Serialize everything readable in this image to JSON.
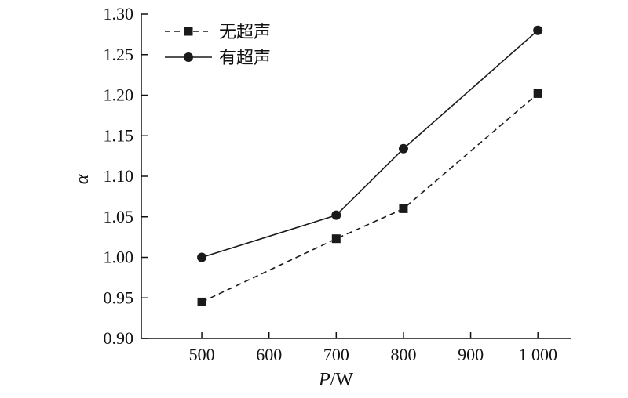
{
  "chart_data": {
    "type": "line",
    "xlabel_main": "P",
    "xlabel_unit": "/W",
    "ylabel": "α",
    "x": [
      500,
      700,
      800,
      1000
    ],
    "xticks": [
      500,
      600,
      700,
      800,
      900,
      1000
    ],
    "xtick_labels": [
      "500",
      "600",
      "700",
      "800",
      "900",
      "1 000"
    ],
    "yticks": [
      0.9,
      0.95,
      1.0,
      1.05,
      1.1,
      1.15,
      1.2,
      1.25,
      1.3
    ],
    "ytick_labels": [
      "0.90",
      "0.95",
      "1.00",
      "1.05",
      "1.10",
      "1.15",
      "1.20",
      "1.25",
      "1.30"
    ],
    "xlim": [
      410,
      1050
    ],
    "ylim": [
      0.9,
      1.3
    ],
    "legend_position": "top-left",
    "grid": false,
    "series": [
      {
        "name": "无超声",
        "values": [
          0.945,
          1.023,
          1.06,
          1.202
        ],
        "marker": "square",
        "line": "dashed",
        "color": "#1a1a1a"
      },
      {
        "name": "有超声",
        "values": [
          1.0,
          1.052,
          1.134,
          1.28
        ],
        "marker": "circle",
        "line": "solid",
        "color": "#1a1a1a"
      }
    ]
  }
}
